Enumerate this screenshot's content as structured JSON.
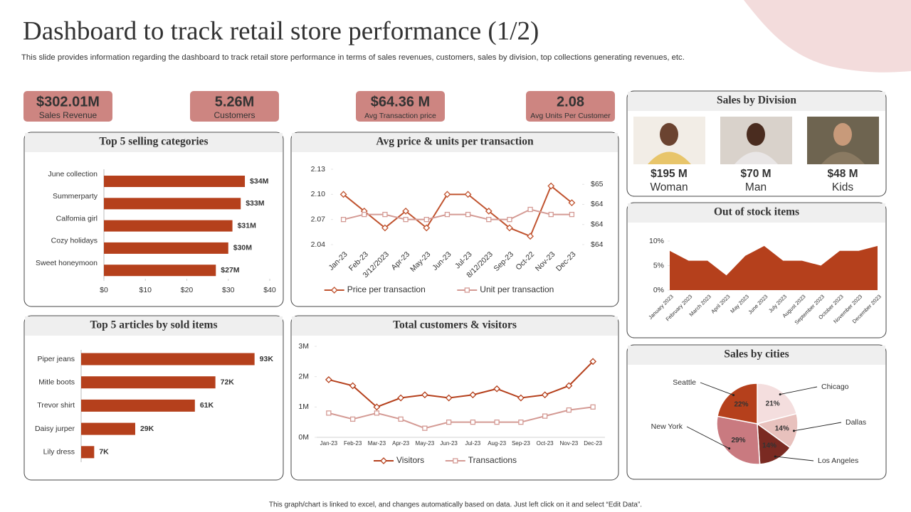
{
  "header": {
    "title": "Dashboard to track retail store performance (1/2)",
    "subtitle": "This slide provides information regarding the dashboard to track retail store performance in terms of sales revenues, customers, sales by division, top collections generating revenues, etc."
  },
  "kpis": [
    {
      "value": "$302.01M",
      "label": "Sales Revenue"
    },
    {
      "value": "5.26M",
      "label": "Customers"
    },
    {
      "value": "$64.36 M",
      "label": "Avg Transaction price"
    },
    {
      "value": "2.08",
      "label": "Avg Units Per Customer"
    }
  ],
  "division": {
    "title": "Sales by Division",
    "items": [
      {
        "value": "$195 M",
        "label": "Woman"
      },
      {
        "value": "$70 M",
        "label": "Man"
      },
      {
        "value": "$48 M",
        "label": "Kids"
      }
    ]
  },
  "chart_data": [
    {
      "type": "bar",
      "orientation": "horizontal",
      "title": "Top 5 selling categories",
      "categories": [
        "June collection",
        "Summerparty",
        "Calfomia girl",
        "Cozy holidays",
        "Sweet honeymoon"
      ],
      "values": [
        34,
        33,
        31,
        30,
        27
      ],
      "value_labels": [
        "$34M",
        "$33M",
        "$31M",
        "$30M",
        "$27M"
      ],
      "color": "#b5401c",
      "xlim": [
        0,
        40
      ],
      "xticks": [
        {
          "value": 0,
          "label": "$0"
        },
        {
          "value": 10,
          "label": "$10"
        },
        {
          "value": 20,
          "label": "$20"
        },
        {
          "value": 30,
          "label": "$30"
        },
        {
          "value": 40,
          "label": "$40"
        }
      ]
    },
    {
      "type": "line",
      "title": "Avg price & units per transaction",
      "categories": [
        "Jan-23",
        "Feb-23",
        "3/12/2023",
        "Apr-23",
        "May-23",
        "Jun-23",
        "Jul-23",
        "8/12/2023",
        "Sep-23",
        "Oct-22",
        "Nov-23",
        "Dec-23"
      ],
      "series": [
        {
          "name": "Price per transaction",
          "color": "#c0532f",
          "marker": "diamond",
          "values": [
            2.1,
            2.08,
            2.06,
            2.08,
            2.06,
            2.1,
            2.1,
            2.08,
            2.06,
            2.05,
            2.11,
            2.09
          ]
        },
        {
          "name": "Unit per transaction",
          "color": "#d49a94",
          "marker": "square",
          "axis": "y2",
          "values": [
            64.1,
            64.2,
            64.2,
            64.1,
            64.1,
            64.2,
            64.2,
            64.1,
            64.1,
            64.3,
            64.2,
            64.2
          ]
        }
      ],
      "ylim": [
        2.04,
        2.13
      ],
      "yticks": [
        2.04,
        2.07,
        {
          "value": 2.1,
          "label": "2.10"
        },
        2.13
      ],
      "y2lim": [
        63.6,
        65.1
      ],
      "y2ticks": [
        {
          "value": 63.6,
          "label": "$64"
        },
        {
          "value": 64.0,
          "label": "$64"
        },
        {
          "value": 64.4,
          "label": "$64"
        },
        {
          "value": 64.8,
          "label": "$65"
        }
      ],
      "legend": "bottom"
    },
    {
      "type": "area",
      "title": "Out of stock items",
      "categories": [
        "January 2023",
        "February 2023",
        "March 2023",
        "April 2023",
        "May 2023",
        "June 2023",
        "July 2023",
        "August 2023",
        "September 2023",
        "October 2023",
        "November 2023",
        "December 2023"
      ],
      "values": [
        8,
        6,
        6,
        3,
        7,
        9,
        6,
        6,
        5,
        8,
        8,
        9
      ],
      "color": "#b5401c",
      "ylim": [
        0,
        10
      ],
      "yticks": [
        {
          "value": 0,
          "label": "0%"
        },
        {
          "value": 5,
          "label": "5%"
        },
        {
          "value": 10,
          "label": "10%"
        }
      ]
    },
    {
      "type": "bar",
      "orientation": "horizontal",
      "title": "Top 5 articles by sold items",
      "categories": [
        "Piper jeans",
        "Mitle boots",
        "Trevor shirt",
        "Daisy jurper",
        "Lily dress"
      ],
      "values": [
        93,
        72,
        61,
        29,
        7
      ],
      "value_labels": [
        "93K",
        "72K",
        "61K",
        "29K",
        "7K"
      ],
      "color": "#b5401c",
      "xlim": [
        0,
        100
      ]
    },
    {
      "type": "line",
      "title": "Total customers & visitors",
      "categories": [
        "Jan-23",
        "Feb-23",
        "Mar-23",
        "Apr-23",
        "May-23",
        "Jun-23",
        "Jul-23",
        "Aug-23",
        "Sep-23",
        "Oct-23",
        "Nov-23",
        "Dec-23"
      ],
      "series": [
        {
          "name": "Visitors",
          "color": "#b5401c",
          "marker": "diamond",
          "values": [
            1.9,
            1.7,
            1.0,
            1.3,
            1.4,
            1.3,
            1.4,
            1.6,
            1.3,
            1.4,
            1.7,
            2.5
          ]
        },
        {
          "name": "Transactions",
          "color": "#d49a94",
          "marker": "square",
          "values": [
            0.8,
            0.6,
            0.8,
            0.6,
            0.3,
            0.5,
            0.5,
            0.5,
            0.5,
            0.7,
            0.9,
            1.0
          ]
        }
      ],
      "ylim": [
        0,
        3
      ],
      "yticks": [
        {
          "value": 0,
          "label": "0M"
        },
        {
          "value": 1,
          "label": "1M"
        },
        {
          "value": 2,
          "label": "2M"
        },
        {
          "value": 3,
          "label": "3M"
        }
      ],
      "legend": "bottom"
    },
    {
      "type": "pie",
      "title": "Sales by cities",
      "categories": [
        "Chicago",
        "Dallas",
        "Los Angeles",
        "New York",
        "Seattle"
      ],
      "values": [
        21,
        14,
        14,
        29,
        22
      ],
      "value_labels": [
        "21%",
        "14%",
        "14%",
        "29%",
        "22%"
      ],
      "colors": [
        "#f4dede",
        "#e8c1bd",
        "#7a2a22",
        "#c97a80",
        "#b5401c"
      ]
    }
  ],
  "footer": "This graph/chart is linked to excel, and changes automatically based on data. Just left click on it and select “Edit Data”."
}
